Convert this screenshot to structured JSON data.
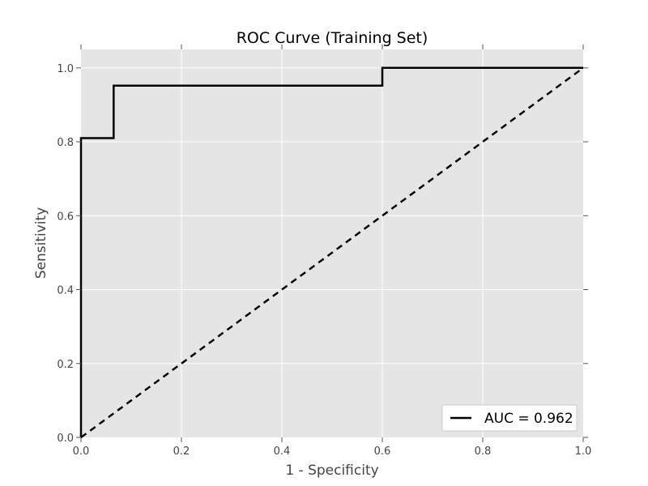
{
  "chart_data": {
    "type": "line",
    "title": "ROC Curve (Training Set)",
    "xlabel": "1 - Specificity",
    "ylabel": "Sensitivity",
    "xlim": [
      0.0,
      1.0
    ],
    "ylim": [
      0.0,
      1.05
    ],
    "xticks": [
      "0.0",
      "0.2",
      "0.4",
      "0.6",
      "0.8",
      "1.0"
    ],
    "yticks": [
      "0.0",
      "0.2",
      "0.4",
      "0.6",
      "0.8",
      "1.0"
    ],
    "grid": true,
    "background": "#e5e5e5",
    "legend_position": "lower-right",
    "series": [
      {
        "name": "AUC = 0.962",
        "color": "#000000",
        "style": "solid",
        "x": [
          0.0,
          0.0,
          0.0,
          0.065,
          0.065,
          0.6,
          0.6,
          1.0
        ],
        "y": [
          0.0,
          0.05,
          0.81,
          0.81,
          0.952,
          0.952,
          1.0,
          1.0
        ]
      },
      {
        "color": "#000000",
        "style": "dashed",
        "x": [
          0.0,
          1.0
        ],
        "y": [
          0.0,
          1.0
        ]
      }
    ]
  }
}
